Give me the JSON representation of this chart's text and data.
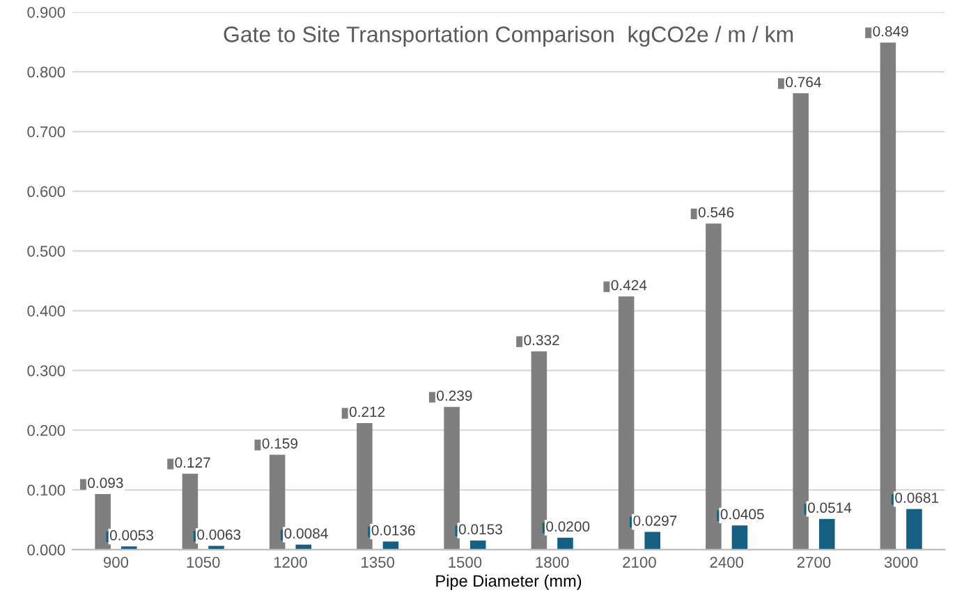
{
  "chart_data": {
    "type": "bar",
    "title": "Gate to Site Transportation Comparison  kgCO2e / m / km",
    "xlabel": "Pipe Diameter (mm)",
    "categories": [
      "900",
      "1050",
      "1200",
      "1350",
      "1500",
      "1800",
      "2100",
      "2400",
      "2700",
      "3000"
    ],
    "series": [
      {
        "color": "#7f7f7f",
        "values": [
          0.093,
          0.127,
          0.159,
          0.212,
          0.239,
          0.332,
          0.424,
          0.546,
          0.764,
          0.849
        ],
        "value_labels": [
          "0.093",
          "0.127",
          "0.159",
          "0.212",
          "0.239",
          "0.332",
          "0.424",
          "0.546",
          "0.764",
          "0.849"
        ]
      },
      {
        "color": "#155f82",
        "values": [
          0.0053,
          0.0063,
          0.0084,
          0.0136,
          0.0153,
          0.02,
          0.0297,
          0.0405,
          0.0514,
          0.0681
        ],
        "value_labels": [
          "0.0053",
          "0.0063",
          "0.0084",
          "0.0136",
          "0.0153",
          "0.0200",
          "0.0297",
          "0.0405",
          "0.0514",
          "0.0681"
        ]
      }
    ],
    "ylim": [
      0,
      0.9
    ],
    "yticks": [
      {
        "value": 0,
        "label": "0.000"
      },
      {
        "value": 0.1,
        "label": "0.100"
      },
      {
        "value": 0.2,
        "label": "0.200"
      },
      {
        "value": 0.3,
        "label": "0.300"
      },
      {
        "value": 0.4,
        "label": "0.400"
      },
      {
        "value": 0.5,
        "label": "0.500"
      },
      {
        "value": 0.6,
        "label": "0.600"
      },
      {
        "value": 0.7,
        "label": "0.700"
      },
      {
        "value": 0.8,
        "label": "0.800"
      },
      {
        "value": 0.9,
        "label": "0.900"
      }
    ],
    "grid": "y",
    "legend": false
  }
}
